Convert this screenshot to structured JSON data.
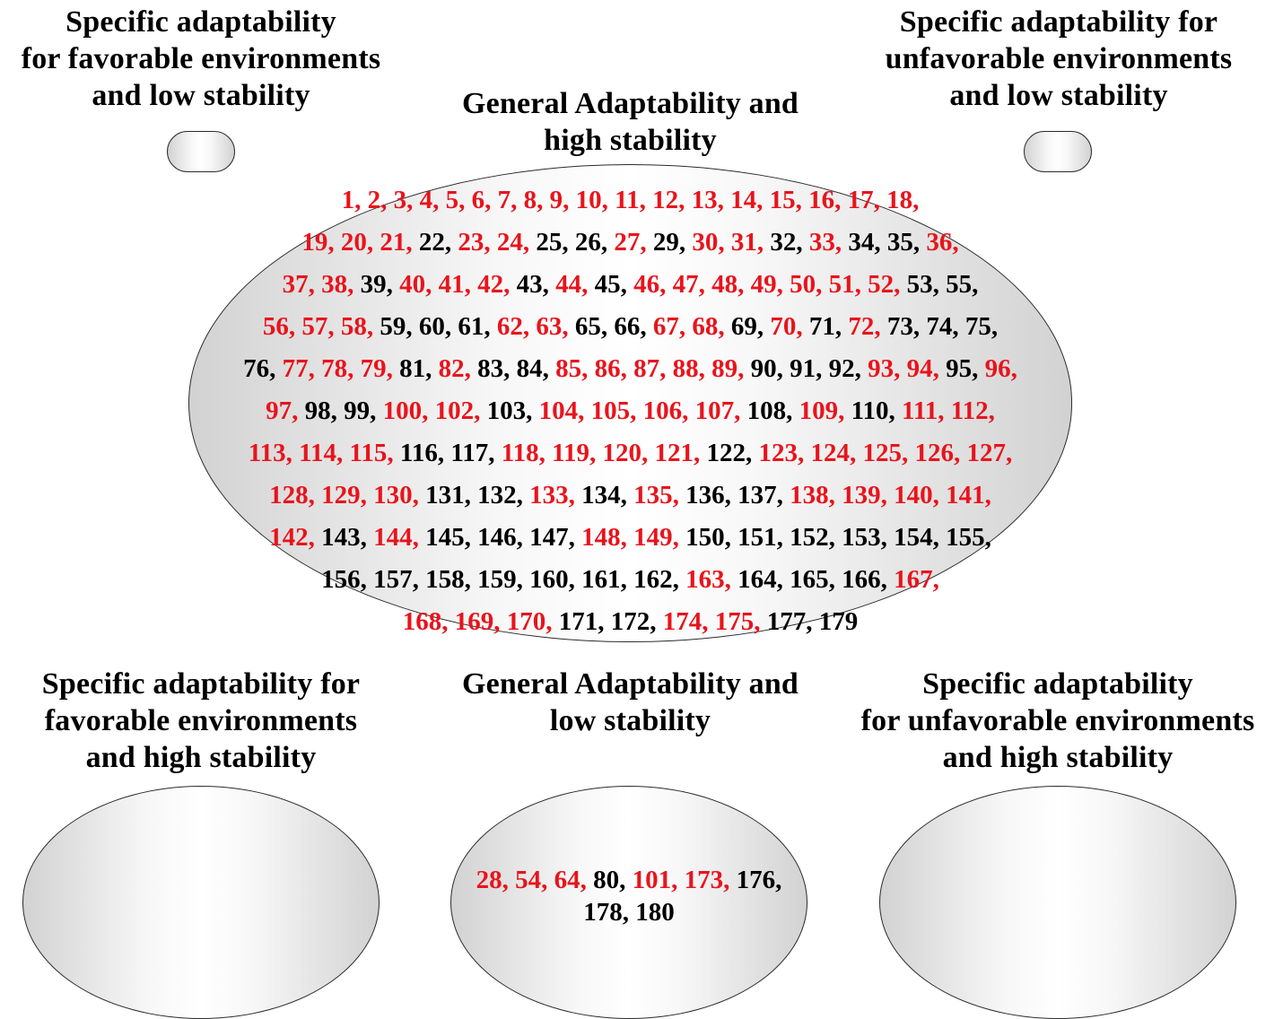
{
  "colors": {
    "highlight": "#e8141c",
    "default": "#000000"
  },
  "groups": {
    "fav_low": {
      "title": "Specific adaptability\nfor favorable environments\nand low stability",
      "lines": []
    },
    "unfav_low": {
      "title": "Specific adaptability for\nunfavorable environments\nand low stability",
      "lines": []
    },
    "gen_high": {
      "title": "General Adaptability and\nhigh stability",
      "lines": [
        [
          [
            "1",
            1
          ],
          [
            "2",
            1
          ],
          [
            "3",
            1
          ],
          [
            "4",
            1
          ],
          [
            "5",
            1
          ],
          [
            "6",
            1
          ],
          [
            "7",
            1
          ],
          [
            "8",
            1
          ],
          [
            "9",
            1
          ],
          [
            "10",
            1
          ],
          [
            "11",
            1
          ],
          [
            "12",
            1
          ],
          [
            "13",
            1
          ],
          [
            "14",
            1
          ],
          [
            "15",
            1
          ],
          [
            "16",
            1
          ],
          [
            "17",
            1
          ],
          [
            "18",
            1
          ]
        ],
        [
          [
            "19",
            1
          ],
          [
            "20",
            1
          ],
          [
            "21",
            1
          ],
          [
            "22",
            0
          ],
          [
            "23",
            1
          ],
          [
            "24",
            1
          ],
          [
            "25",
            0
          ],
          [
            "26",
            0
          ],
          [
            "27",
            1
          ],
          [
            "29",
            0
          ],
          [
            "30",
            1
          ],
          [
            "31",
            1
          ],
          [
            "32",
            0
          ],
          [
            "33",
            1
          ],
          [
            "34",
            0
          ],
          [
            "35",
            0
          ],
          [
            "36",
            1
          ]
        ],
        [
          [
            "37",
            1
          ],
          [
            "38",
            1
          ],
          [
            "39",
            0
          ],
          [
            "40",
            1
          ],
          [
            "41",
            1
          ],
          [
            "42",
            1
          ],
          [
            "43",
            0
          ],
          [
            "44",
            1
          ],
          [
            "45",
            0
          ],
          [
            "46",
            1
          ],
          [
            "47",
            1
          ],
          [
            "48",
            1
          ],
          [
            "49",
            1
          ],
          [
            "50",
            1
          ],
          [
            "51",
            1
          ],
          [
            "52",
            1
          ],
          [
            "53",
            0
          ],
          [
            "55",
            0
          ]
        ],
        [
          [
            "56",
            1
          ],
          [
            "57",
            1
          ],
          [
            "58",
            1
          ],
          [
            "59",
            0
          ],
          [
            "60",
            0
          ],
          [
            "61",
            0
          ],
          [
            "62",
            1
          ],
          [
            "63",
            1
          ],
          [
            "65",
            0
          ],
          [
            "66",
            0
          ],
          [
            "67",
            1
          ],
          [
            "68",
            1
          ],
          [
            "69",
            0
          ],
          [
            "70",
            1
          ],
          [
            "71",
            0
          ],
          [
            "72",
            1
          ],
          [
            "73",
            0
          ],
          [
            "74",
            0
          ],
          [
            "75",
            0
          ]
        ],
        [
          [
            "76",
            0
          ],
          [
            "77",
            1
          ],
          [
            "78",
            1
          ],
          [
            "79",
            1
          ],
          [
            "81",
            0
          ],
          [
            "82",
            1
          ],
          [
            "83",
            0
          ],
          [
            "84",
            0
          ],
          [
            "85",
            1
          ],
          [
            "86",
            1
          ],
          [
            "87",
            1
          ],
          [
            "88",
            1
          ],
          [
            "89",
            1
          ],
          [
            "90",
            0
          ],
          [
            "91",
            0
          ],
          [
            "92",
            0
          ],
          [
            "93",
            1
          ],
          [
            "94",
            1
          ],
          [
            "95",
            0
          ],
          [
            "96",
            1
          ]
        ],
        [
          [
            "97",
            1
          ],
          [
            "98",
            0
          ],
          [
            "99",
            0
          ],
          [
            "100",
            1
          ],
          [
            "102",
            1
          ],
          [
            "103",
            0
          ],
          [
            "104",
            1
          ],
          [
            "105",
            1
          ],
          [
            "106",
            1
          ],
          [
            "107",
            1
          ],
          [
            "108",
            0
          ],
          [
            "109",
            1
          ],
          [
            "110",
            0
          ],
          [
            "111",
            1
          ],
          [
            "112",
            1
          ]
        ],
        [
          [
            "113",
            1
          ],
          [
            "114",
            1
          ],
          [
            "115",
            1
          ],
          [
            "116",
            0
          ],
          [
            "117",
            0
          ],
          [
            "118",
            1
          ],
          [
            "119",
            1
          ],
          [
            "120",
            1
          ],
          [
            "121",
            1
          ],
          [
            "122",
            0
          ],
          [
            "123",
            1
          ],
          [
            "124",
            1
          ],
          [
            "125",
            1
          ],
          [
            "126",
            1
          ],
          [
            "127",
            1
          ]
        ],
        [
          [
            "128",
            1
          ],
          [
            "129",
            1
          ],
          [
            "130",
            1
          ],
          [
            "131",
            0
          ],
          [
            "132",
            0
          ],
          [
            "133",
            1
          ],
          [
            "134",
            0
          ],
          [
            "135",
            1
          ],
          [
            "136",
            0
          ],
          [
            "137",
            0
          ],
          [
            "138",
            1
          ],
          [
            "139",
            1
          ],
          [
            "140",
            1
          ],
          [
            "141",
            1
          ]
        ],
        [
          [
            "142",
            1
          ],
          [
            "143",
            0
          ],
          [
            "144",
            1
          ],
          [
            "145",
            0
          ],
          [
            "146",
            0
          ],
          [
            "147",
            0
          ],
          [
            "148",
            1
          ],
          [
            "149",
            1
          ],
          [
            "150",
            0
          ],
          [
            "151",
            0
          ],
          [
            "152",
            0
          ],
          [
            "153",
            0
          ],
          [
            "154",
            0
          ],
          [
            "155",
            0
          ]
        ],
        [
          [
            "156",
            0
          ],
          [
            "157",
            0
          ],
          [
            "158",
            0
          ],
          [
            "159",
            0
          ],
          [
            "160",
            0
          ],
          [
            "161",
            0
          ],
          [
            "162",
            0
          ],
          [
            "163",
            1
          ],
          [
            "164",
            0
          ],
          [
            "165",
            0
          ],
          [
            "166",
            0
          ],
          [
            "167",
            1
          ]
        ],
        [
          [
            "168",
            1
          ],
          [
            "169",
            1
          ],
          [
            "170",
            1
          ],
          [
            "171",
            0
          ],
          [
            "172",
            0
          ],
          [
            "174",
            1
          ],
          [
            "175",
            1
          ],
          [
            "177",
            0
          ],
          [
            "179",
            0
          ]
        ]
      ],
      "line_ends_with_comma": [
        true,
        true,
        true,
        true,
        true,
        true,
        true,
        true,
        true,
        true,
        false
      ]
    },
    "fav_high": {
      "title": "Specific adaptability for\nfavorable environments\nand high stability",
      "lines": []
    },
    "gen_low": {
      "title": "General Adaptability and\nlow stability",
      "lines": [
        [
          [
            "28",
            1
          ],
          [
            "54",
            1
          ],
          [
            "64",
            1
          ],
          [
            "80",
            0
          ],
          [
            "101",
            1
          ],
          [
            "173",
            1
          ],
          [
            "176",
            0
          ]
        ],
        [
          [
            "178",
            0
          ],
          [
            "180",
            0
          ]
        ]
      ],
      "line_ends_with_comma": [
        true,
        false
      ]
    },
    "unfav_high": {
      "title": "Specific adaptability\nfor unfavorable environments\nand high stability",
      "lines": []
    }
  }
}
